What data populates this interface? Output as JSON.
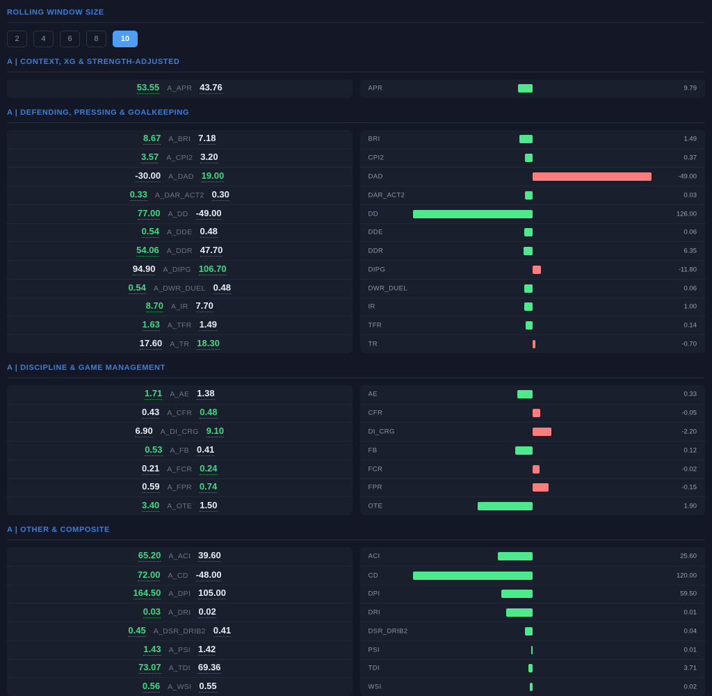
{
  "controls": {
    "title": "ROLLING WINDOW SIZE",
    "options": [
      "2",
      "4",
      "6",
      "8",
      "10"
    ],
    "selected": "10"
  },
  "colors": {
    "positive_bar": "#4ee98c",
    "negative_bar": "#fb7d7d",
    "positive_text": "#40d982",
    "accent_blue": "#4f9df5",
    "header_blue": "#3f7ed4",
    "page_bg": "#141826",
    "card_bg": "#1a1f2d"
  },
  "sections": [
    {
      "title": "A | CONTEXT, XG & STRENGTH-ADJUSTED",
      "rows": [
        {
          "value_a": "53.55",
          "code": "A_APR",
          "value_b": "43.76",
          "higher": "a",
          "metric": "APR",
          "diff": "9.79",
          "bar_len": 21
        }
      ]
    },
    {
      "title": "A | DEFENDING, PRESSING & GOALKEEPING",
      "rows": [
        {
          "value_a": "8.67",
          "code": "A_BRI",
          "value_b": "7.18",
          "higher": "a",
          "metric": "BRI",
          "diff": "1.49",
          "bar_len": 19
        },
        {
          "value_a": "3.57",
          "code": "A_CPI2",
          "value_b": "3.20",
          "higher": "a",
          "metric": "CPI2",
          "diff": "0.37",
          "bar_len": 11
        },
        {
          "value_a": "-30.00",
          "code": "A_DAD",
          "value_b": "19.00",
          "higher": "b",
          "metric": "DAD",
          "diff": "-49.00",
          "bar_len": 171
        },
        {
          "value_a": "0.33",
          "code": "A_DAR_ACT2",
          "value_b": "0.30",
          "higher": "a",
          "metric": "DAR_ACT2",
          "diff": "0.03",
          "bar_len": 11
        },
        {
          "value_a": "77.00",
          "code": "A_DD",
          "value_b": "-49.00",
          "higher": "a",
          "metric": "DD",
          "diff": "126.00",
          "bar_len": 172
        },
        {
          "value_a": "0.54",
          "code": "A_DDE",
          "value_b": "0.48",
          "higher": "a",
          "metric": "DDE",
          "diff": "0.06",
          "bar_len": 12
        },
        {
          "value_a": "54.06",
          "code": "A_DDR",
          "value_b": "47.70",
          "higher": "a",
          "metric": "DDR",
          "diff": "6.35",
          "bar_len": 13
        },
        {
          "value_a": "94.90",
          "code": "A_DIPG",
          "value_b": "106.70",
          "higher": "b",
          "metric": "DIPG",
          "diff": "-11.80",
          "bar_len": 12
        },
        {
          "value_a": "0.54",
          "code": "A_DWR_DUEL",
          "value_b": "0.48",
          "higher": "a",
          "metric": "DWR_DUEL",
          "diff": "0.06",
          "bar_len": 12
        },
        {
          "value_a": "8.70",
          "code": "A_IR",
          "value_b": "7.70",
          "higher": "a",
          "metric": "IR",
          "diff": "1.00",
          "bar_len": 12
        },
        {
          "value_a": "1.63",
          "code": "A_TFR",
          "value_b": "1.49",
          "higher": "a",
          "metric": "TFR",
          "diff": "0.14",
          "bar_len": 10
        },
        {
          "value_a": "17.60",
          "code": "A_TR",
          "value_b": "18.30",
          "higher": "b",
          "metric": "TR",
          "diff": "-0.70",
          "bar_len": 4
        }
      ]
    },
    {
      "title": "A | DISCIPLINE & GAME MANAGEMENT",
      "rows": [
        {
          "value_a": "1.71",
          "code": "A_AE",
          "value_b": "1.38",
          "higher": "a",
          "metric": "AE",
          "diff": "0.33",
          "bar_len": 22
        },
        {
          "value_a": "0.43",
          "code": "A_CFR",
          "value_b": "0.48",
          "higher": "b",
          "metric": "CFR",
          "diff": "-0.05",
          "bar_len": 11
        },
        {
          "value_a": "6.90",
          "code": "A_DI_CRG",
          "value_b": "9.10",
          "higher": "b",
          "metric": "DI_CRG",
          "diff": "-2.20",
          "bar_len": 27
        },
        {
          "value_a": "0.53",
          "code": "A_FB",
          "value_b": "0.41",
          "higher": "a",
          "metric": "FB",
          "diff": "0.12",
          "bar_len": 25
        },
        {
          "value_a": "0.21",
          "code": "A_FCR",
          "value_b": "0.24",
          "higher": "b",
          "metric": "FCR",
          "diff": "-0.02",
          "bar_len": 10
        },
        {
          "value_a": "0.59",
          "code": "A_FPR",
          "value_b": "0.74",
          "higher": "b",
          "metric": "FPR",
          "diff": "-0.15",
          "bar_len": 23
        },
        {
          "value_a": "3.40",
          "code": "A_OTE",
          "value_b": "1.50",
          "higher": "a",
          "metric": "OTE",
          "diff": "1.90",
          "bar_len": 79
        }
      ]
    },
    {
      "title": "A | OTHER & COMPOSITE",
      "rows": [
        {
          "value_a": "65.20",
          "code": "A_ACI",
          "value_b": "39.60",
          "higher": "a",
          "metric": "ACI",
          "diff": "25.60",
          "bar_len": 50
        },
        {
          "value_a": "72.00",
          "code": "A_CD",
          "value_b": "-48.00",
          "higher": "a",
          "metric": "CD",
          "diff": "120.00",
          "bar_len": 172
        },
        {
          "value_a": "164.50",
          "code": "A_DPI",
          "value_b": "105.00",
          "higher": "a",
          "metric": "DPI",
          "diff": "59.50",
          "bar_len": 45
        },
        {
          "value_a": "0.03",
          "code": "A_DRI",
          "value_b": "0.02",
          "higher": "a",
          "metric": "DRI",
          "diff": "0.01",
          "bar_len": 38
        },
        {
          "value_a": "0.45",
          "code": "A_DSR_DRIB2",
          "value_b": "0.41",
          "higher": "a",
          "metric": "DSR_DRIB2",
          "diff": "0.04",
          "bar_len": 11
        },
        {
          "value_a": "1.43",
          "code": "A_PSI",
          "value_b": "1.42",
          "higher": "a",
          "metric": "PSI",
          "diff": "0.01",
          "bar_len": 2
        },
        {
          "value_a": "73.07",
          "code": "A_TDI",
          "value_b": "69.36",
          "higher": "a",
          "metric": "TDI",
          "diff": "3.71",
          "bar_len": 6
        },
        {
          "value_a": "0.56",
          "code": "A_WSI",
          "value_b": "0.55",
          "higher": "a",
          "metric": "WSI",
          "diff": "0.02",
          "bar_len": 4
        }
      ]
    }
  ]
}
